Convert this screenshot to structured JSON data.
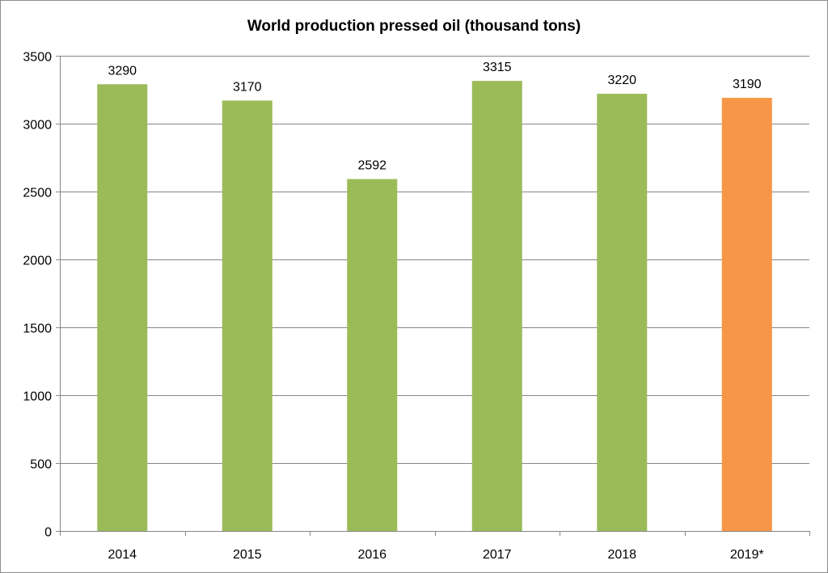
{
  "chart_data": {
    "type": "bar",
    "title": "World production pressed oil (thousand tons)",
    "xlabel": "",
    "ylabel": "",
    "categories": [
      "2014",
      "2015",
      "2016",
      "2017",
      "2018",
      "2019*"
    ],
    "values": [
      3290,
      3170,
      2592,
      3315,
      3220,
      3190
    ],
    "data_labels": [
      "3290",
      "3170",
      "2592",
      "3315",
      "3220",
      "3190"
    ],
    "bar_colors": [
      "#9bbb59",
      "#9bbb59",
      "#9bbb59",
      "#9bbb59",
      "#9bbb59",
      "#f79646"
    ],
    "ylim": [
      0,
      3500
    ],
    "yticks": [
      0,
      500,
      1000,
      1500,
      2000,
      2500,
      3000,
      3500
    ],
    "ytick_labels": [
      "0",
      "500",
      "1000",
      "1500",
      "2000",
      "2500",
      "3000",
      "3500"
    ],
    "grid": true,
    "legend": "none",
    "colors": {
      "gridline": "#868686",
      "axis": "#868686"
    }
  }
}
